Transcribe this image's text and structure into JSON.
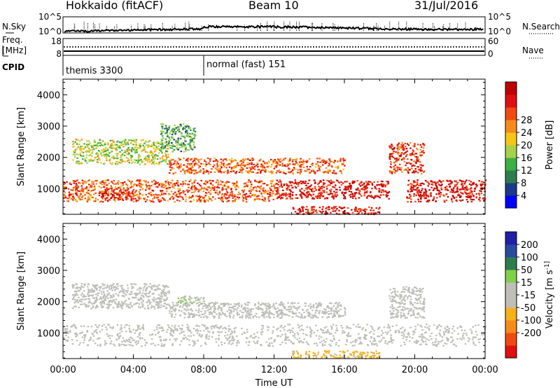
{
  "header": {
    "station": "Hokkaido (fitACF)",
    "beam": "Beam 10",
    "date": "31/Jul/2016"
  },
  "status_panel": {
    "left_labels": [
      "N.Sky",
      "Freq.",
      "[MHz]",
      "CPID"
    ],
    "right_labels": [
      "N.Search",
      "Nave"
    ],
    "nsky_ticks": [
      "10^5",
      "10^0"
    ],
    "nsearch_ticks": [
      "10^5",
      "10^0"
    ],
    "freq_ticks": [
      "18",
      "8"
    ],
    "nave_ticks": [
      "60",
      "0"
    ],
    "cpid_segments": [
      {
        "label": "themis 3300",
        "start_hour": 0
      },
      {
        "label": "normal (fast) 151",
        "start_hour": 8
      }
    ]
  },
  "colors": {
    "power": [
      "#0000ff",
      "#1a3a8a",
      "#2e7d4f",
      "#3cb043",
      "#a8d04a",
      "#f5c518",
      "#f58c1a",
      "#f04a14",
      "#e01010",
      "#c00000"
    ],
    "velocity": [
      "#1f1fa8",
      "#2a4aa0",
      "#2e7d4f",
      "#7fd04a",
      "#bfbfb8",
      "#bfbfb8",
      "#f5b218",
      "#f58c1a",
      "#f04a14",
      "#e01010"
    ]
  },
  "chart_data": [
    {
      "type": "heatmap",
      "title": "Power",
      "xlabel": "",
      "ylabel": "Slant Range [km]",
      "xlim": [
        0,
        24
      ],
      "ylim": [
        180,
        4500
      ],
      "yticks": [
        1000,
        2000,
        3000,
        4000
      ],
      "colorbar": {
        "label": "Power [dB]",
        "ticks": [
          4,
          8,
          12,
          16,
          20,
          24,
          28
        ],
        "range": [
          0,
          30
        ]
      },
      "regions": [
        {
          "x": [
            0,
            12
          ],
          "y": [
            600,
            1300
          ],
          "value": 22
        },
        {
          "x": [
            2,
            4
          ],
          "y": [
            700,
            900
          ],
          "value": 26
        },
        {
          "x": [
            12,
            18.5
          ],
          "y": [
            700,
            1300
          ],
          "value": 26
        },
        {
          "x": [
            19.5,
            24
          ],
          "y": [
            600,
            1300
          ],
          "value": 26
        },
        {
          "x": [
            6,
            16
          ],
          "y": [
            1500,
            2000
          ],
          "value": 22
        },
        {
          "x": [
            0.5,
            6
          ],
          "y": [
            1800,
            2600
          ],
          "value": 14
        },
        {
          "x": [
            5.5,
            7.5
          ],
          "y": [
            2200,
            3100
          ],
          "value": 10
        },
        {
          "x": [
            18.5,
            20.5
          ],
          "y": [
            1500,
            2500
          ],
          "value": 24
        },
        {
          "x": [
            13,
            18
          ],
          "y": [
            200,
            450
          ],
          "value": 26
        }
      ]
    },
    {
      "type": "heatmap",
      "title": "Velocity",
      "xlabel": "Time UT",
      "ylabel": "Slant Range [km]",
      "xlim": [
        0,
        24
      ],
      "ylim": [
        180,
        4500
      ],
      "yticks": [
        1000,
        2000,
        3000,
        4000
      ],
      "xticks": [
        "00:00",
        "04:00",
        "08:00",
        "12:00",
        "16:00",
        "20:00",
        "00:00"
      ],
      "colorbar": {
        "label": "Velocity [m s^-1]",
        "ticks": [
          200,
          100,
          50,
          15,
          -15,
          -50,
          -100,
          -200
        ],
        "range": [
          -250,
          250
        ]
      },
      "regions": [
        {
          "x": [
            0,
            24
          ],
          "y": [
            600,
            1300
          ],
          "value": 0
        },
        {
          "x": [
            6,
            16
          ],
          "y": [
            1500,
            2000
          ],
          "value": 0
        },
        {
          "x": [
            0.5,
            6
          ],
          "y": [
            1800,
            2600
          ],
          "value": 0
        },
        {
          "x": [
            18.5,
            20.5
          ],
          "y": [
            1500,
            2500
          ],
          "value": 0
        },
        {
          "x": [
            13,
            18
          ],
          "y": [
            200,
            450
          ],
          "value": -60
        },
        {
          "x": [
            6.5,
            8
          ],
          "y": [
            1900,
            2200
          ],
          "value": 40
        }
      ]
    }
  ]
}
